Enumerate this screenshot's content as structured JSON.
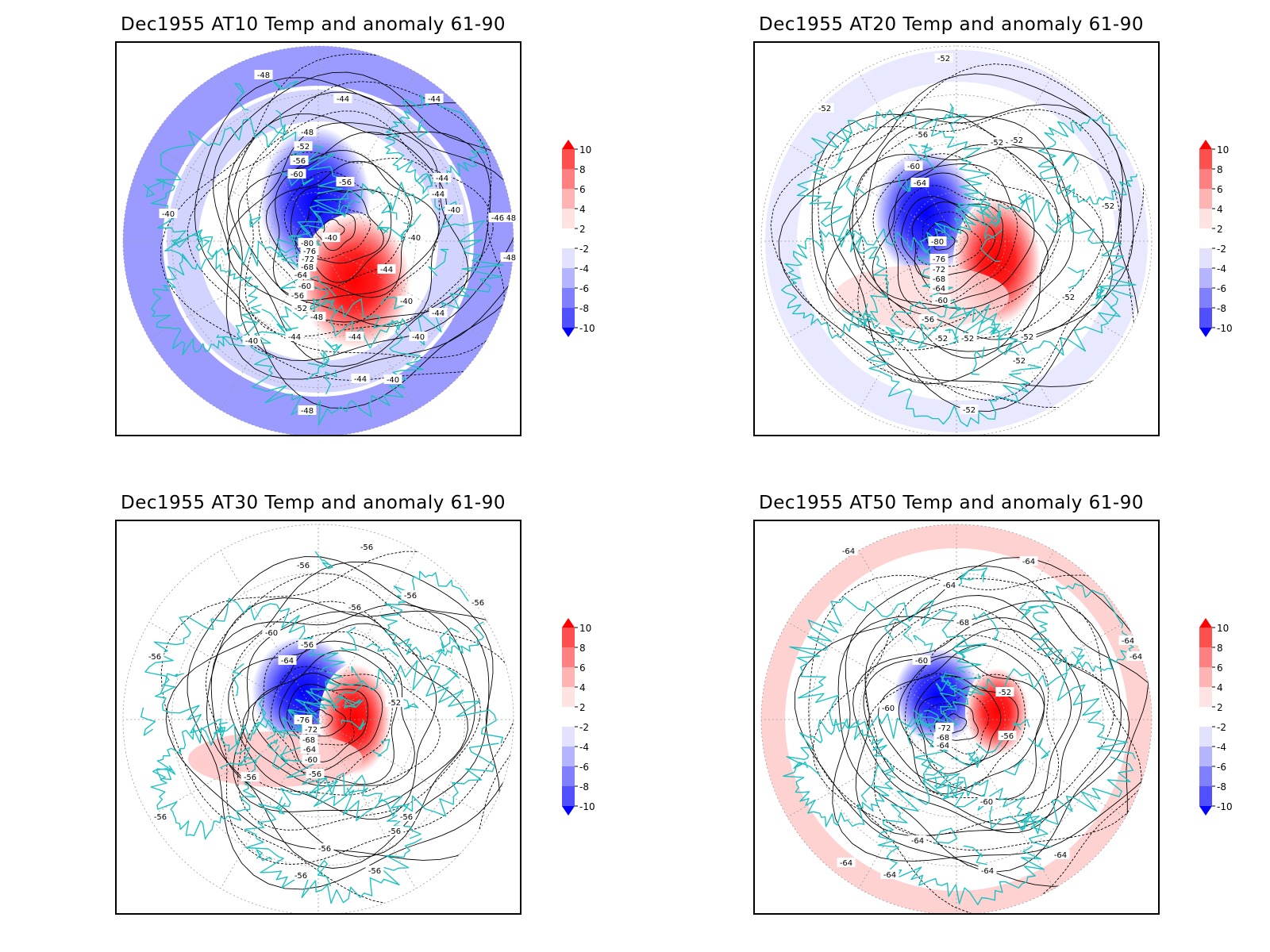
{
  "panels": [
    {
      "title": "Dec1955 AT10 Temp and anomaly 61-90",
      "contour_labels": [
        "-48",
        "-48",
        "-44",
        "-44",
        "-48",
        "-52",
        "-56",
        "-60",
        "-56",
        "-44",
        "-44",
        "-40",
        "-40",
        "-40",
        "-44",
        "-40",
        "-40",
        "-44",
        "-44",
        "-40",
        "-80",
        "-76",
        "-72",
        "-68",
        "-64",
        "-60",
        "-56",
        "-52",
        "-48",
        "-44",
        "-40",
        "-40",
        "-44",
        "-48",
        "-48",
        "-46"
      ]
    },
    {
      "title": "Dec1955 AT20 Temp and anomaly 61-90",
      "contour_labels": [
        "-52",
        "-52",
        "-52",
        "-56",
        "-52",
        "-60",
        "-64",
        "-80",
        "-76",
        "-72",
        "-68",
        "-64",
        "-60",
        "-56",
        "-52",
        "-52",
        "-52",
        "-52",
        "-52",
        "-52",
        "-52"
      ]
    },
    {
      "title": "Dec1955 AT30 Temp and anomaly 61-90",
      "contour_labels": [
        "-56",
        "-56",
        "-56",
        "-56",
        "-56",
        "-56",
        "-60",
        "-56",
        "-64",
        "-52",
        "-76",
        "-72",
        "-68",
        "-64",
        "-60",
        "-56",
        "-56",
        "-56",
        "-56",
        "-56",
        "-56",
        "-56",
        "-56"
      ]
    },
    {
      "title": "Dec1955 AT50 Temp and anomaly 61-90",
      "contour_labels": [
        "-64",
        "-64",
        "-64",
        "-68",
        "-60",
        "-60",
        "-52",
        "-72",
        "-68",
        "-64",
        "-56",
        "-64",
        "-64",
        "-64",
        "-64",
        "-64",
        "-64",
        "-64",
        "-60"
      ]
    }
  ],
  "colorbar": {
    "tick_labels": [
      "10",
      "8",
      "6",
      "4",
      "2",
      "-2",
      "-4",
      "-6",
      "-8",
      "-10"
    ],
    "colors": [
      "#ff0000",
      "#ff5050",
      "#ff8080",
      "#ffb4b4",
      "#ffe2e2",
      "#ffffff",
      "#e2e2ff",
      "#b4b4ff",
      "#8080ff",
      "#5050ff",
      "#1e1eff",
      "#0000ff"
    ]
  },
  "colors": {
    "coastline": "#20c0c0",
    "contour": "#000000",
    "grid": "#9a9a9a"
  }
}
